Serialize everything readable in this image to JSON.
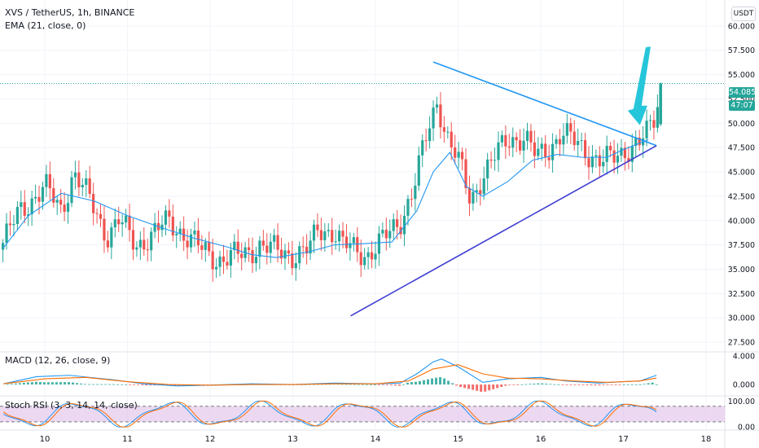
{
  "header": {
    "symbol_line": "XVS / TetherUS, 1h, BINANCE",
    "ema_line": "EMA (21, close, 0)"
  },
  "currency_button": "USDT",
  "price_badges": {
    "last_price": "54.085",
    "countdown": "47:07"
  },
  "colors": {
    "up": "#26a69a",
    "down": "#ef5350",
    "ema": "#2196f3",
    "trendline_top": "#2196f3",
    "trendline_bottom": "#3f3fd4",
    "arrow": "#26c6da",
    "macd": "#2196f3",
    "signal": "#ff6d00",
    "rsi_k": "#2196f3",
    "rsi_d": "#ff6d00",
    "rsi_band": "#e1bee7"
  },
  "chart_data": [
    {
      "type": "candlestick",
      "title": "XVS / TetherUS, 1h, BINANCE",
      "ylim": [
        26.5,
        62.0
      ],
      "y_ticks": [
        "60.000",
        "57.500",
        "55.000",
        "52.500",
        "50.000",
        "47.500",
        "45.000",
        "42.500",
        "40.000",
        "37.500",
        "35.000",
        "32.500",
        "30.000",
        "27.500"
      ],
      "x_ticks": [
        "10",
        "11",
        "12",
        "13",
        "14",
        "15",
        "16",
        "17",
        "18"
      ],
      "series": [
        {
          "name": "EMA (21, close, 0)",
          "points": [
            [
              9.5,
              37.2
            ],
            [
              9.8,
              40.5
            ],
            [
              10.2,
              42.8
            ],
            [
              10.6,
              42.0
            ],
            [
              11.0,
              40.5
            ],
            [
              11.4,
              39.3
            ],
            [
              11.8,
              38.2
            ],
            [
              12.2,
              37.3
            ],
            [
              12.5,
              36.5
            ],
            [
              12.8,
              36.2
            ],
            [
              13.2,
              36.8
            ],
            [
              13.5,
              37.5
            ],
            [
              13.8,
              37.6
            ],
            [
              14.2,
              37.8
            ],
            [
              14.5,
              41.0
            ],
            [
              14.7,
              45.0
            ],
            [
              14.9,
              47.0
            ],
            [
              15.1,
              43.5
            ],
            [
              15.3,
              42.5
            ],
            [
              15.6,
              44.0
            ],
            [
              15.9,
              46.2
            ],
            [
              16.2,
              46.8
            ],
            [
              16.5,
              46.5
            ],
            [
              16.8,
              46.5
            ],
            [
              17.0,
              47.3
            ],
            [
              17.3,
              48.3
            ]
          ]
        }
      ],
      "trendlines": [
        {
          "name": "upper",
          "from": [
            14.7,
            56.3
          ],
          "to": [
            17.4,
            47.7
          ]
        },
        {
          "name": "lower",
          "from": [
            13.7,
            30.2
          ],
          "to": [
            17.4,
            47.7
          ]
        }
      ],
      "annotations": [
        {
          "type": "arrow",
          "from": [
            17.3,
            57.8
          ],
          "to": [
            17.2,
            49.8
          ]
        }
      ],
      "last_price": 54.085,
      "countdown": "47:07"
    },
    {
      "type": "line",
      "title": "MACD (12, 26, close, 9)",
      "ylim": [
        -1.6,
        4.6
      ],
      "y_ticks": [
        "4.000",
        "0.000"
      ],
      "series": [
        {
          "name": "MACD",
          "points": [
            [
              9.5,
              0.1
            ],
            [
              9.9,
              1.1
            ],
            [
              10.3,
              1.3
            ],
            [
              10.8,
              0.7
            ],
            [
              11.2,
              0.1
            ],
            [
              11.6,
              -0.2
            ],
            [
              12.0,
              -0.1
            ],
            [
              12.5,
              0.1
            ],
            [
              13.0,
              0.0
            ],
            [
              13.5,
              0.2
            ],
            [
              14.0,
              0.1
            ],
            [
              14.3,
              0.2
            ],
            [
              14.5,
              1.5
            ],
            [
              14.7,
              3.2
            ],
            [
              14.8,
              3.6
            ],
            [
              15.0,
              2.5
            ],
            [
              15.3,
              0.3
            ],
            [
              15.6,
              0.8
            ],
            [
              16.0,
              1.0
            ],
            [
              16.3,
              0.5
            ],
            [
              16.7,
              0.2
            ],
            [
              17.0,
              0.4
            ],
            [
              17.2,
              0.5
            ],
            [
              17.4,
              1.3
            ]
          ]
        },
        {
          "name": "Signal",
          "points": [
            [
              9.5,
              0.1
            ],
            [
              10.0,
              0.8
            ],
            [
              10.5,
              1.0
            ],
            [
              11.0,
              0.4
            ],
            [
              11.5,
              0.0
            ],
            [
              12.0,
              -0.1
            ],
            [
              12.5,
              0.0
            ],
            [
              13.0,
              0.0
            ],
            [
              13.5,
              0.1
            ],
            [
              14.0,
              0.1
            ],
            [
              14.4,
              0.5
            ],
            [
              14.7,
              2.2
            ],
            [
              15.0,
              2.8
            ],
            [
              15.3,
              1.5
            ],
            [
              15.6,
              0.9
            ],
            [
              16.0,
              0.8
            ],
            [
              16.4,
              0.5
            ],
            [
              16.8,
              0.3
            ],
            [
              17.2,
              0.5
            ],
            [
              17.4,
              0.9
            ]
          ]
        }
      ]
    },
    {
      "type": "line",
      "title": "Stoch RSI (3, 3, 14, 14, close)",
      "ylim": [
        -12,
        120
      ],
      "y_ticks": [
        "100.00",
        "0.00"
      ],
      "bands": [
        20,
        80
      ],
      "series": [
        {
          "name": "K",
          "points": []
        },
        {
          "name": "D",
          "points": []
        }
      ]
    }
  ]
}
